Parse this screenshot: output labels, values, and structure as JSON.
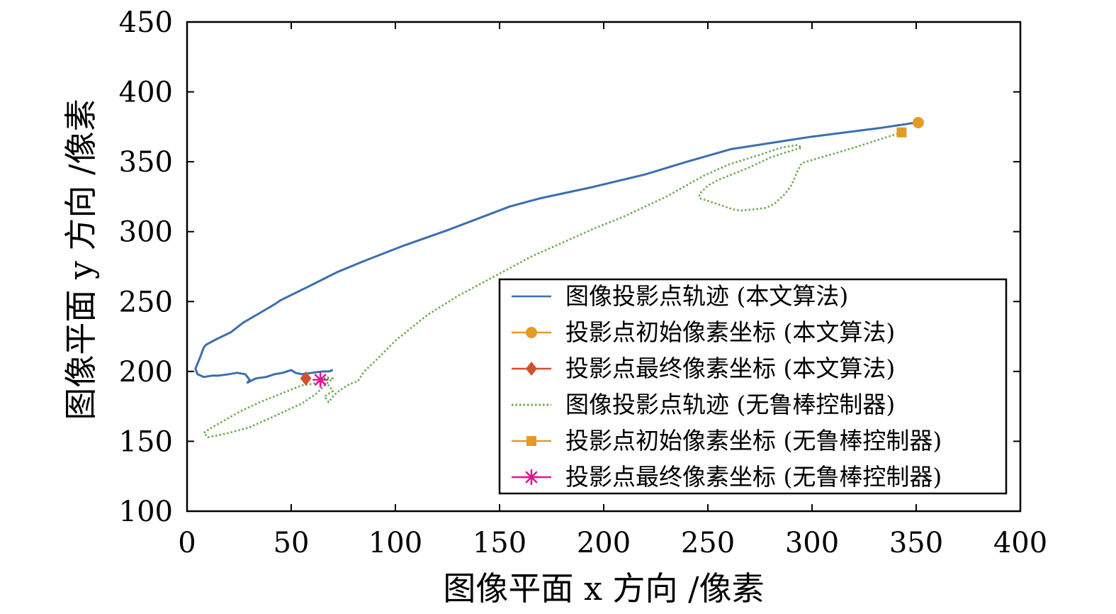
{
  "chart_data": {
    "type": "line",
    "xlabel": "图像平面 x 方向 /像素",
    "ylabel": "图像平面 y 方向 /像素",
    "xlim": [
      0,
      400
    ],
    "ylim": [
      100,
      450
    ],
    "xticks": [
      "0",
      "50",
      "100",
      "150",
      "200",
      "250",
      "300",
      "350",
      "400"
    ],
    "yticks": [
      "100",
      "150",
      "200",
      "250",
      "300",
      "350",
      "400",
      "450"
    ],
    "grid": false,
    "legend_position": "lower-right",
    "series": [
      {
        "name": "图像投影点轨迹 (本文算法)",
        "style": "line",
        "color": "#3a6fb0",
        "x": [
          350,
          332,
          300,
          261,
          240,
          220,
          195,
          170,
          155,
          125,
          104,
          85,
          72,
          60,
          45,
          42,
          34,
          27,
          21,
          14,
          9,
          8,
          6,
          4,
          5,
          8,
          12,
          15,
          20,
          24,
          28,
          30,
          29,
          33,
          38,
          42,
          46,
          50,
          52,
          55,
          60,
          65,
          68,
          70
        ],
        "y": [
          378,
          374,
          368,
          359,
          350,
          341,
          332,
          324,
          318,
          301,
          290,
          279,
          271,
          262,
          251,
          248,
          241,
          235,
          228,
          223,
          219,
          217,
          209,
          202,
          198,
          196,
          197,
          197,
          198,
          199,
          198,
          194,
          192,
          195,
          196,
          198,
          199,
          201,
          199,
          198,
          199,
          200,
          200,
          201
        ]
      },
      {
        "name": "投影点初始像素坐标 (本文算法)",
        "style": "marker",
        "marker": "circle",
        "color": "#e39a27",
        "x": [
          351
        ],
        "y": [
          378
        ]
      },
      {
        "name": "投影点最终像素坐标 (本文算法)",
        "style": "marker",
        "marker": "diamond",
        "color": "#d3502c",
        "x": [
          57
        ],
        "y": [
          195
        ]
      },
      {
        "name": "图像投影点轨迹 (无鲁棒控制器)",
        "style": "dotted",
        "color": "#6aa84f",
        "x": [
          343,
          320,
          295,
          293,
          290,
          287,
          282,
          278,
          272,
          266,
          262,
          258,
          254,
          250,
          246,
          246,
          250,
          255,
          260,
          270,
          280,
          288,
          295,
          293,
          285,
          275,
          260,
          248,
          230,
          210,
          195,
          180,
          165,
          155,
          145,
          130,
          115,
          100,
          90,
          85,
          82,
          78,
          75,
          72,
          70,
          68,
          66,
          70,
          68,
          64,
          60,
          55,
          45,
          35,
          25,
          18,
          12,
          8,
          10,
          14,
          20,
          30,
          42,
          55,
          62,
          66,
          70,
          66,
          68
        ],
        "y": [
          371,
          360,
          349,
          343,
          333,
          327,
          320,
          317,
          316,
          315,
          316,
          318,
          320,
          322,
          324,
          327,
          333,
          337,
          340,
          346,
          353,
          357,
          360,
          362,
          360,
          355,
          348,
          340,
          325,
          311,
          302,
          292,
          282,
          274,
          266,
          254,
          240,
          222,
          207,
          200,
          193,
          191,
          188,
          185,
          182,
          178,
          182,
          186,
          190,
          193,
          191,
          190,
          184,
          178,
          171,
          165,
          160,
          156,
          153,
          154,
          156,
          160,
          168,
          177,
          184,
          190,
          195,
          195,
          196
        ]
      },
      {
        "name": "投影点初始像素坐标 (无鲁棒控制器)",
        "style": "marker",
        "marker": "square",
        "color": "#e39a27",
        "x": [
          343
        ],
        "y": [
          371
        ]
      },
      {
        "name": "投影点最终像素坐标 (无鲁棒控制器)",
        "style": "marker",
        "marker": "asterisk",
        "color": "#e0168f",
        "x": [
          64
        ],
        "y": [
          194
        ]
      }
    ]
  }
}
